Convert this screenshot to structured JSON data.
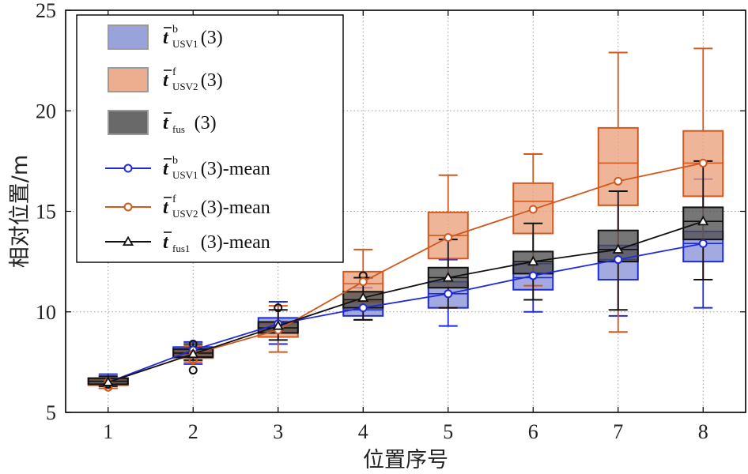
{
  "chart_data": {
    "type": "box",
    "title": "",
    "xlabel": "位置序号",
    "ylabel": "相对位置/m",
    "xlim": [
      0.5,
      8.5
    ],
    "ylim": [
      5,
      25
    ],
    "x_ticks": [
      "1",
      "2",
      "3",
      "4",
      "5",
      "6",
      "7",
      "8"
    ],
    "y_ticks": [
      "5",
      "10",
      "15",
      "20",
      "25"
    ],
    "grid": true,
    "legend_position": "top-left",
    "legend_entries": [
      {
        "prefix": "t",
        "sup": "b",
        "sub": "USV1",
        "suffix": "(3)"
      },
      {
        "prefix": "t",
        "sup": "f",
        "sub": "USV2",
        "suffix": "(3)"
      },
      {
        "prefix": "t",
        "sup": "",
        "sub": "fus",
        "suffix": "(3)"
      },
      {
        "prefix": "t",
        "sup": "b",
        "sub": "USV1",
        "suffix": "(3)-mean"
      },
      {
        "prefix": "t",
        "sup": "f",
        "sub": "USV2",
        "suffix": "(3)-mean"
      },
      {
        "prefix": "t",
        "sup": "",
        "sub": "fus1",
        "suffix": "(3)-mean"
      }
    ],
    "series": [
      {
        "color": "#1f2bd6",
        "box_fill": "#8892d6",
        "marker": "circle",
        "means": [
          6.5,
          8.1,
          9.4,
          10.2,
          10.9,
          11.8,
          12.6,
          13.4
        ],
        "boxes": [
          {
            "whisker_low": 6.2,
            "q1": 6.4,
            "median": 6.55,
            "q3": 6.7,
            "whisker_high": 6.9
          },
          {
            "whisker_low": 7.4,
            "q1": 7.85,
            "median": 8.1,
            "q3": 8.25,
            "whisker_high": 8.5
          },
          {
            "whisker_low": 8.4,
            "q1": 9.0,
            "median": 9.4,
            "q3": 9.7,
            "whisker_high": 10.5
          },
          {
            "whisker_low": 9.6,
            "q1": 9.8,
            "median": 10.1,
            "q3": 10.5,
            "whisker_high": 11.2
          },
          {
            "whisker_low": 9.3,
            "q1": 10.2,
            "median": 10.9,
            "q3": 11.5,
            "whisker_high": 12.6
          },
          {
            "whisker_low": 10.0,
            "q1": 11.1,
            "median": 11.7,
            "q3": 12.4,
            "whisker_high": 13.9
          },
          {
            "whisker_low": 9.8,
            "q1": 11.6,
            "median": 12.6,
            "q3": 13.3,
            "whisker_high": 16.0
          },
          {
            "whisker_low": 10.2,
            "q1": 12.5,
            "median": 13.4,
            "q3": 14.0,
            "whisker_high": 16.6
          }
        ]
      },
      {
        "color": "#d2581e",
        "box_fill": "#eaa07c",
        "marker": "circle",
        "means": [
          6.5,
          7.9,
          9.1,
          11.5,
          13.7,
          15.1,
          16.5,
          17.4
        ],
        "boxes": [
          {
            "whisker_low": 6.2,
            "q1": 6.35,
            "median": 6.5,
            "q3": 6.65,
            "whisker_high": 6.8
          },
          {
            "whisker_low": 7.5,
            "q1": 7.7,
            "median": 7.9,
            "q3": 8.05,
            "whisker_high": 8.3
          },
          {
            "whisker_low": 8.0,
            "q1": 8.75,
            "median": 9.1,
            "q3": 9.45,
            "whisker_high": 10.3
          },
          {
            "whisker_low": 9.6,
            "q1": 10.5,
            "median": 11.4,
            "q3": 12.0,
            "whisker_high": 13.1
          },
          {
            "whisker_low": 10.2,
            "q1": 12.65,
            "median": 13.8,
            "q3": 14.95,
            "whisker_high": 16.8
          },
          {
            "whisker_low": 11.3,
            "q1": 13.9,
            "median": 15.5,
            "q3": 16.4,
            "whisker_high": 17.85
          },
          {
            "whisker_low": 9.0,
            "q1": 15.3,
            "median": 17.4,
            "q3": 19.15,
            "whisker_high": 22.9
          },
          {
            "whisker_low": 11.6,
            "q1": 15.75,
            "median": 17.4,
            "q3": 19.0,
            "whisker_high": 23.1
          }
        ]
      },
      {
        "color": "#111111",
        "box_fill": "#4f4f4f",
        "marker": "triangle",
        "means": [
          6.5,
          7.9,
          9.3,
          10.7,
          11.7,
          12.5,
          13.1,
          14.5
        ],
        "boxes": [
          {
            "whisker_low": 6.3,
            "q1": 6.4,
            "median": 6.55,
            "q3": 6.7,
            "whisker_high": 6.8
          },
          {
            "whisker_low": 7.6,
            "q1": 7.75,
            "median": 7.95,
            "q3": 8.15,
            "whisker_high": 8.4
          },
          {
            "whisker_low": 8.6,
            "q1": 8.95,
            "median": 9.2,
            "q3": 9.5,
            "whisker_high": 10.1
          },
          {
            "whisker_low": 9.6,
            "q1": 10.2,
            "median": 10.6,
            "q3": 11.0,
            "whisker_high": 11.7
          },
          {
            "whisker_low": 10.2,
            "q1": 11.2,
            "median": 11.7,
            "q3": 12.2,
            "whisker_high": 13.6
          },
          {
            "whisker_low": 10.6,
            "q1": 11.9,
            "median": 12.5,
            "q3": 13.0,
            "whisker_high": 14.4
          },
          {
            "whisker_low": 10.1,
            "q1": 12.5,
            "median": 13.1,
            "q3": 14.05,
            "whisker_high": 16.0
          },
          {
            "whisker_low": 11.6,
            "q1": 13.6,
            "median": 14.5,
            "q3": 15.2,
            "whisker_high": 17.5
          }
        ]
      }
    ],
    "outliers": [
      {
        "series": 2,
        "x": 1,
        "y": 6.4
      },
      {
        "series": 1,
        "x": 1,
        "y": 6.25
      },
      {
        "series": 2,
        "x": 2,
        "y": 8.4
      },
      {
        "series": 2,
        "x": 2,
        "y": 7.1
      },
      {
        "series": 1,
        "x": 2,
        "y": 7.6
      },
      {
        "series": 2,
        "x": 3,
        "y": 10.2
      },
      {
        "series": 2,
        "x": 4,
        "y": 11.8
      }
    ]
  }
}
